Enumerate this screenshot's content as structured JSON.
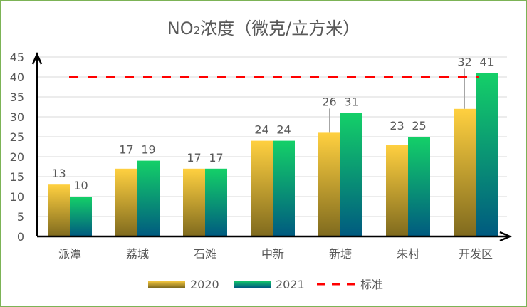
{
  "chart_data": {
    "type": "bar",
    "title": "NO2浓度（微克/立方米）",
    "title_parts": {
      "prefix": "NO",
      "subscript": "2",
      "suffix": "浓度（微克/立方米）"
    },
    "categories": [
      "派潭",
      "荔城",
      "石滩",
      "中新",
      "新塘",
      "朱村",
      "开发区"
    ],
    "series": [
      {
        "name": "2020",
        "values": [
          13,
          17,
          17,
          24,
          26,
          23,
          32
        ],
        "color_top": "#ffd040",
        "color_bottom": "#7f6a1e"
      },
      {
        "name": "2021",
        "values": [
          10,
          19,
          17,
          24,
          31,
          25,
          41
        ],
        "color_top": "#14d068",
        "color_bottom": "#005a80"
      }
    ],
    "reference_line": {
      "name": "标准",
      "value": 40,
      "color": "#ff0000",
      "style": "dashed"
    },
    "ylim": [
      0,
      45
    ],
    "yticks": [
      0,
      5,
      10,
      15,
      20,
      25,
      30,
      35,
      40,
      45
    ],
    "grid": true,
    "legend_position": "bottom",
    "data_labels": true
  }
}
